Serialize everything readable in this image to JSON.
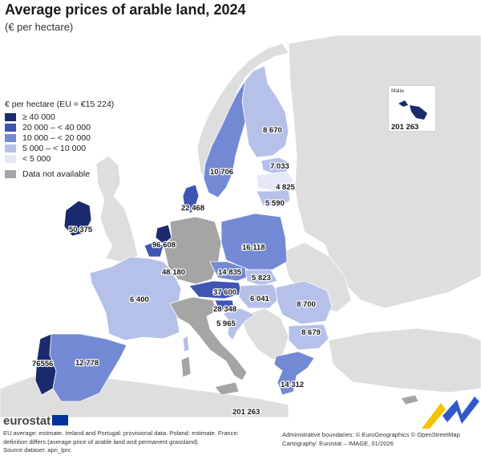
{
  "header": {
    "title": "Average prices of arable land, 2024",
    "subtitle": "(€ per hectare)"
  },
  "legend": {
    "title": "€ per hectare (EU = €15 224)",
    "classes": [
      {
        "label": "≥ 40 000",
        "color": "#1c2b6e"
      },
      {
        "label": "20 000 – < 40 000",
        "color": "#3e55b4"
      },
      {
        "label": "10 000 – < 20 000",
        "color": "#7389d4"
      },
      {
        "label": "5 000 – < 10 000",
        "color": "#b6c1ea"
      },
      {
        "label": "< 5 000",
        "color": "#e4e8f7"
      }
    ],
    "not_available": {
      "label": "Data not available",
      "color": "#a5a5a5"
    }
  },
  "map": {
    "labels": {
      "finland": "8 670",
      "sweden": "10 706",
      "estonia": "7 033",
      "latvia": "4 825",
      "lithuania": "5 590",
      "denmark": "22 468",
      "ireland": "50 375",
      "netherlands": "96 608",
      "belgium_lux": "48 180",
      "poland": "16 118",
      "czechia": "14 835",
      "slovakia": "5 823",
      "austria": "37 600",
      "hungary": "6 041",
      "slovenia": "28 348",
      "croatia": "5 965",
      "romania": "8 700",
      "bulgaria": "8 679",
      "greece": "14 312",
      "france": "6 400",
      "spain": "12 778",
      "portugal": "76556",
      "malta_bottom": "201 263"
    },
    "malta_inset": {
      "name": "Malta",
      "value": "201 263"
    }
  },
  "footer": {
    "logo": "eurostat",
    "notes": "EU average: estimate. Ireland and Portugal: provisional data. Poland: estimate. France: definition differs (average price of arable land and permanent grassland).",
    "source": "Source dataset: apri_lprc",
    "credits_1": "Administrative boundaries: © EuroGeographics © OpenStreetMap",
    "credits_2": "Cartography: Eurostat – IMAGE, 01/2026"
  }
}
